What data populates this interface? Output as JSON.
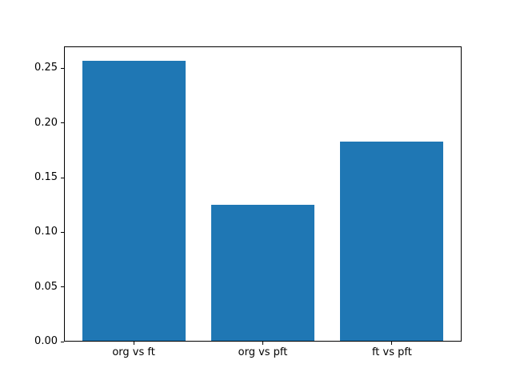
{
  "figure": {
    "background": "#ffffff",
    "axes_background": "#ffffff",
    "frame_color": "#000000",
    "tick_color": "#000000",
    "text_color": "#000000"
  },
  "chart_data": {
    "type": "bar",
    "title": "",
    "xlabel": "",
    "ylabel": "",
    "categories": [
      "org vs ft",
      "org vs pft",
      "ft vs pft"
    ],
    "values": [
      0.257,
      0.125,
      0.183
    ],
    "bar_color": "#1f77b4",
    "bar_width": 0.8,
    "xlim": [
      -0.54,
      2.54
    ],
    "ylim": [
      0,
      0.27
    ],
    "yticks": [
      0.0,
      0.05,
      0.1,
      0.15,
      0.2,
      0.25
    ],
    "ytick_labels": [
      "0.00",
      "0.05",
      "0.10",
      "0.15",
      "0.20",
      "0.25"
    ],
    "grid": false,
    "legend": false
  }
}
